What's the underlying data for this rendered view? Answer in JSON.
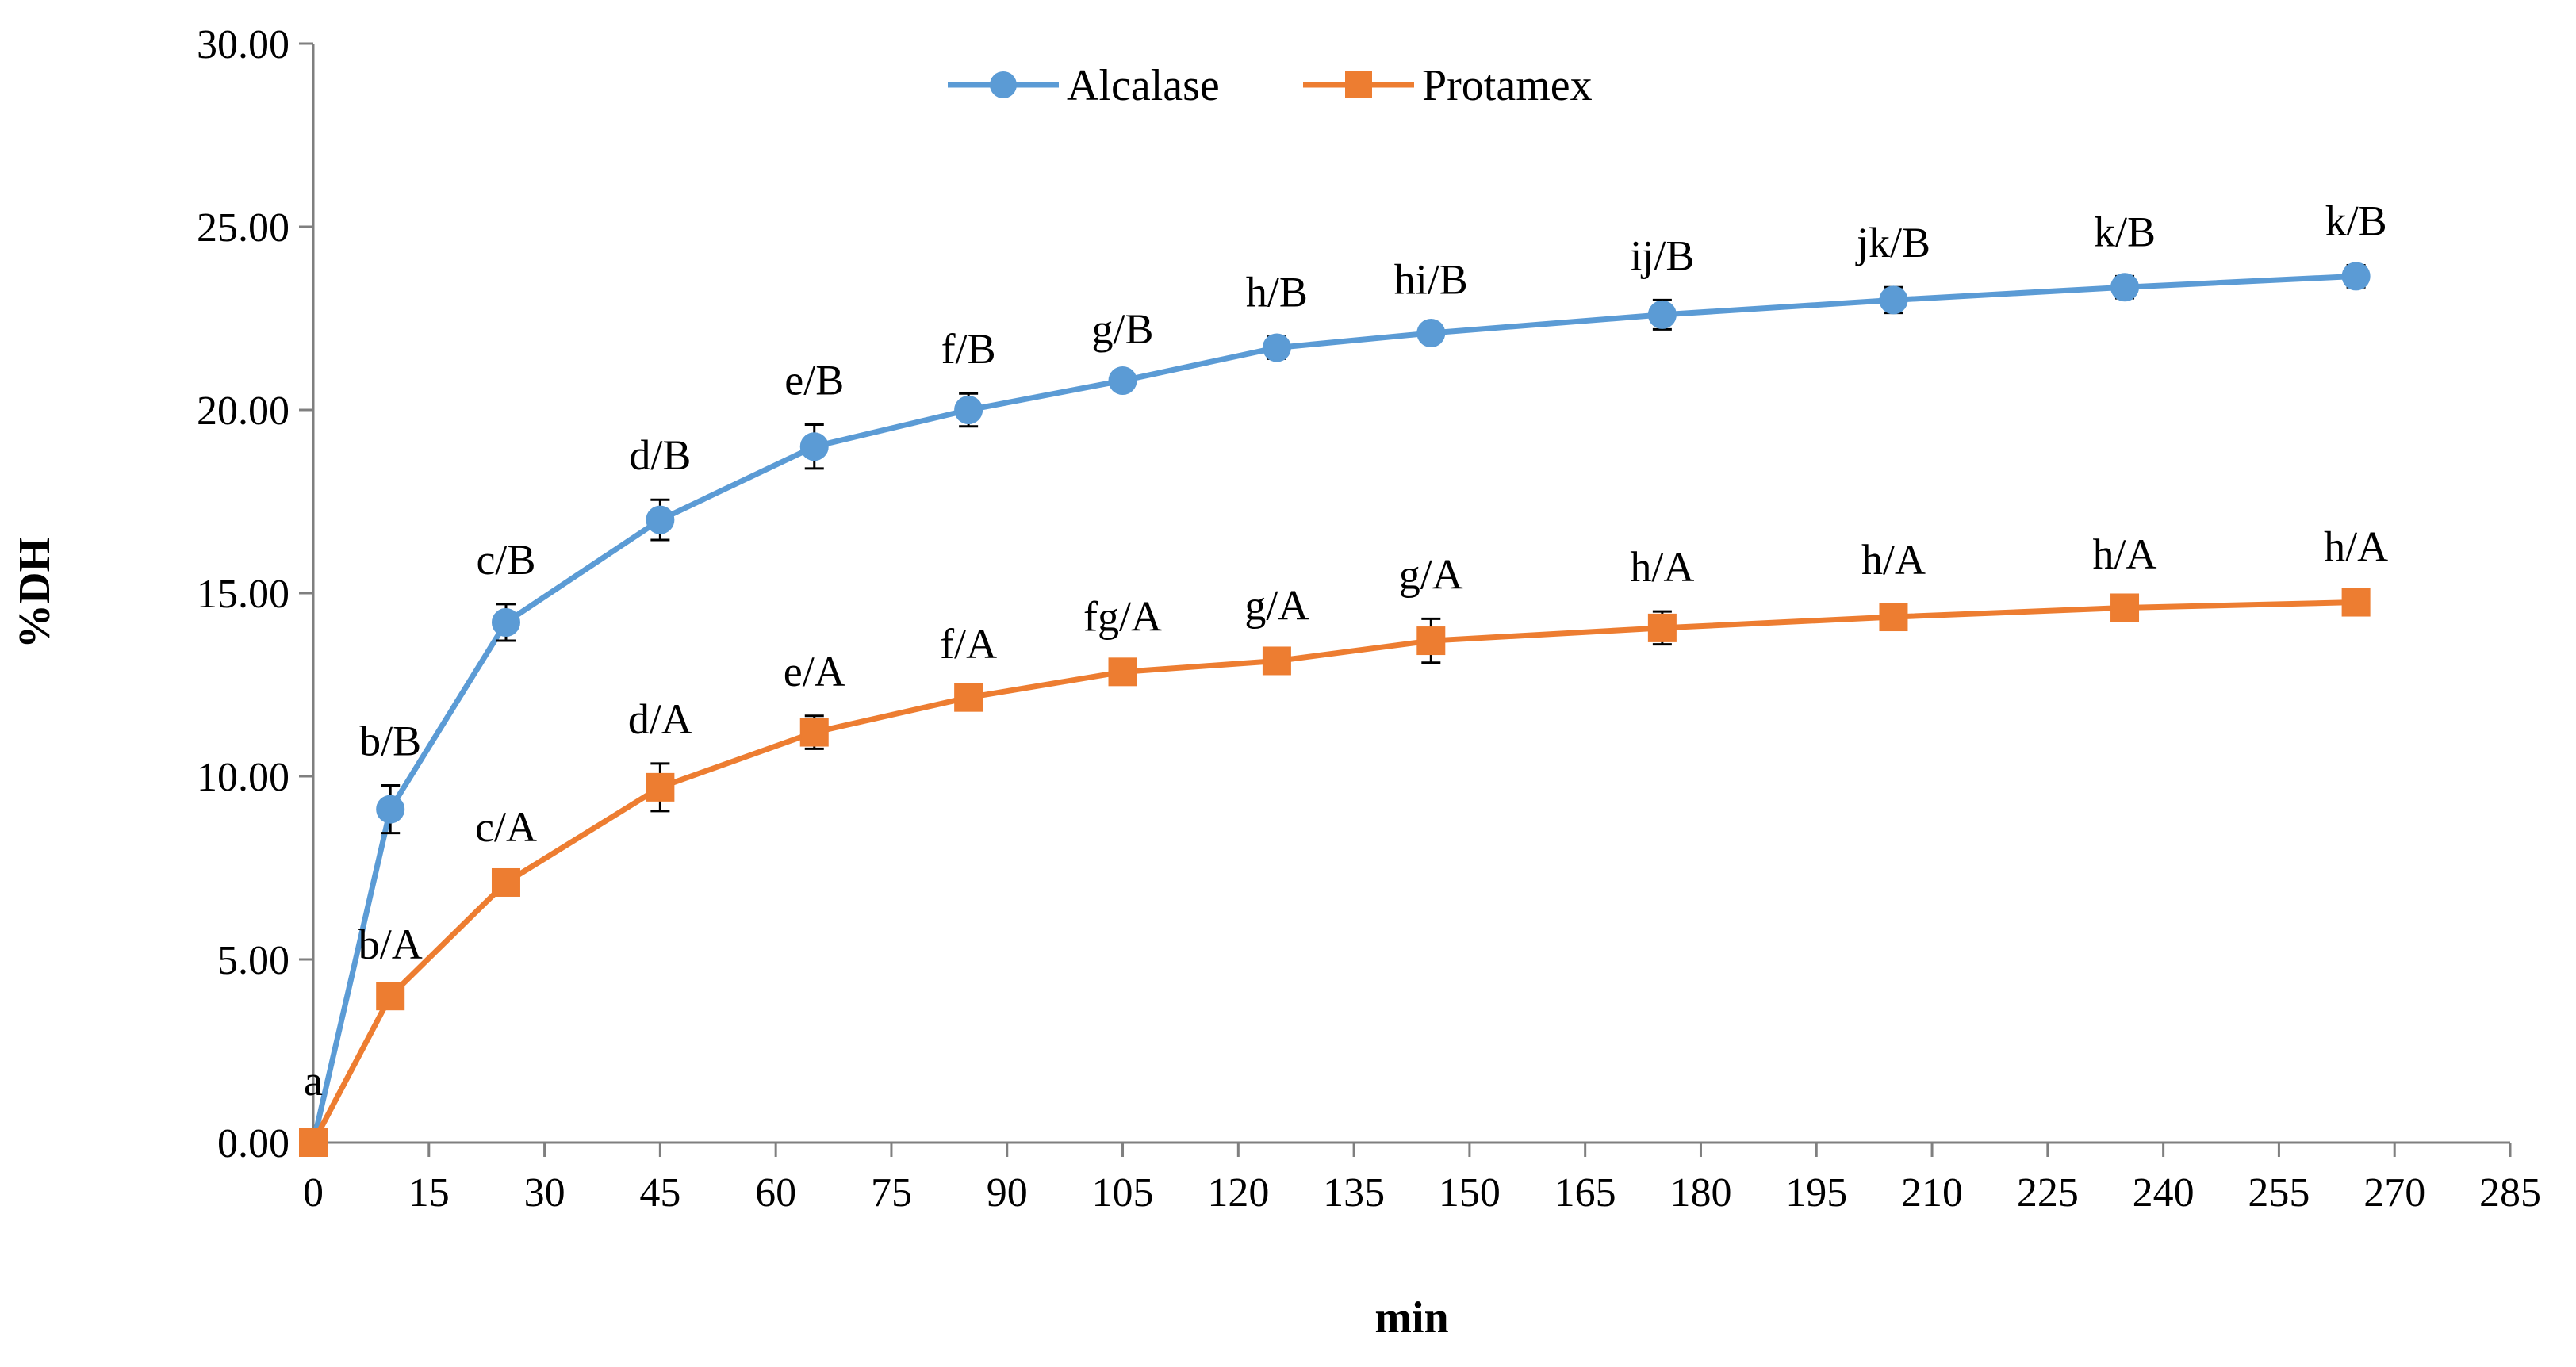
{
  "chart_data": {
    "type": "line",
    "title": "",
    "xlabel": "min",
    "ylabel": "%DH",
    "xlim": [
      0,
      285
    ],
    "ylim": [
      0,
      30
    ],
    "x_ticks": [
      0,
      15,
      30,
      45,
      60,
      75,
      90,
      105,
      120,
      135,
      150,
      165,
      180,
      195,
      210,
      225,
      240,
      255,
      270,
      285
    ],
    "x_tick_labels": [
      "0",
      "15",
      "30",
      "45",
      "60",
      "75",
      "90",
      "105",
      "120",
      "135",
      "150",
      "165",
      "180",
      "195",
      "210",
      "225",
      "240",
      "255",
      "270",
      "285"
    ],
    "y_ticks": [
      0,
      5,
      10,
      15,
      20,
      25,
      30
    ],
    "y_tick_labels": [
      "0.00",
      "5.00",
      "10.00",
      "15.00",
      "20.00",
      "25.00",
      "30.00"
    ],
    "legend_position": "top-center",
    "shared_origin_label": "a",
    "series": [
      {
        "name": "Alcalase",
        "color": "#5B9BD5",
        "marker": "circle",
        "x": [
          0,
          10,
          25,
          45,
          65,
          85,
          105,
          125,
          145,
          175,
          205,
          235,
          265
        ],
        "values": [
          0,
          9.1,
          14.2,
          17.0,
          19.0,
          20.0,
          20.8,
          21.7,
          22.1,
          22.6,
          23.0,
          23.35,
          23.65
        ],
        "errors": [
          0,
          0.65,
          0.5,
          0.55,
          0.6,
          0.45,
          0.2,
          0.3,
          0.25,
          0.4,
          0.35,
          0.3,
          0.3
        ],
        "labels": [
          "",
          "b/B",
          "c/B",
          "d/B",
          "e/B",
          "f/B",
          "g/B",
          "h/B",
          "hi/B",
          "ij/B",
          "jk/B",
          "k/B",
          "k/B"
        ]
      },
      {
        "name": "Protamex",
        "color": "#ED7D31",
        "marker": "square",
        "x": [
          0,
          10,
          25,
          45,
          65,
          85,
          105,
          125,
          145,
          175,
          205,
          235,
          265
        ],
        "values": [
          0,
          4.0,
          7.1,
          9.7,
          11.2,
          12.15,
          12.85,
          13.15,
          13.7,
          14.05,
          14.35,
          14.6,
          14.75
        ],
        "errors": [
          0,
          0.2,
          0.3,
          0.65,
          0.45,
          0.25,
          0.3,
          0.3,
          0.6,
          0.45,
          0.35,
          0.25,
          0.3
        ],
        "labels": [
          "",
          "b/A",
          "c/A",
          "d/A",
          "e/A",
          "f/A",
          "fg/A",
          "g/A",
          "g/A",
          "h/A",
          "h/A",
          "h/A",
          "h/A"
        ]
      }
    ]
  }
}
